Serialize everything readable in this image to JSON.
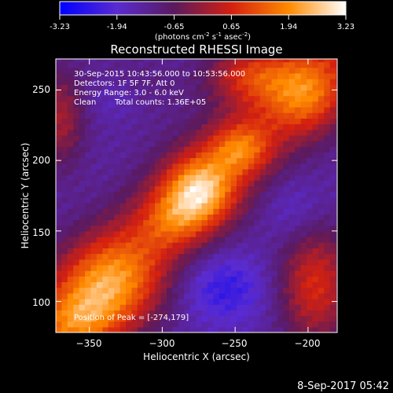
{
  "colorbar": {
    "ticks": [
      "-3.23",
      "-1.94",
      "-0.65",
      "0.65",
      "1.94",
      "3.23"
    ],
    "units_text": "(photons cm",
    "units_exp1": "-2",
    "units_mid": " s",
    "units_exp2": "-1",
    "units_mid2": " asec",
    "units_exp3": "-2",
    "units_end": ")",
    "colors": [
      "#0000ff",
      "#5a2bd0",
      "#5a1a5e",
      "#d42010",
      "#ff8a00",
      "#ffffff"
    ]
  },
  "chart_data": {
    "type": "heatmap",
    "title": "Reconstructed RHESSI Image",
    "xlabel": "Heliocentric X (arcsec)",
    "ylabel": "Heliocentric Y (arcsec)",
    "xlim": [
      -373,
      -180
    ],
    "ylim": [
      78,
      272
    ],
    "x_ticks": [
      -350,
      -300,
      -250,
      -200
    ],
    "y_ticks": [
      100,
      150,
      200,
      250
    ],
    "x_tick_labels": [
      "−350",
      "−300",
      "−250",
      "−200"
    ],
    "y_tick_labels": [
      "100",
      "150",
      "200",
      "250"
    ],
    "color_range": [
      -3.23,
      3.23
    ],
    "peak": [
      -274,
      179
    ],
    "annotations": {
      "time": "30-Sep-2015 10:43:56.000 to 10:53:56.000",
      "detectors": "Detectors: 1F 5F 7F, Att 0",
      "energy": "Energy Range: 3.0 - 6.0 keV",
      "method": "Clean",
      "counts": "Total counts: 1.36E+05",
      "peak_text": "Position of Peak = [-274,179]"
    }
  },
  "footer": {
    "timestamp": "8-Sep-2017 05:42"
  }
}
